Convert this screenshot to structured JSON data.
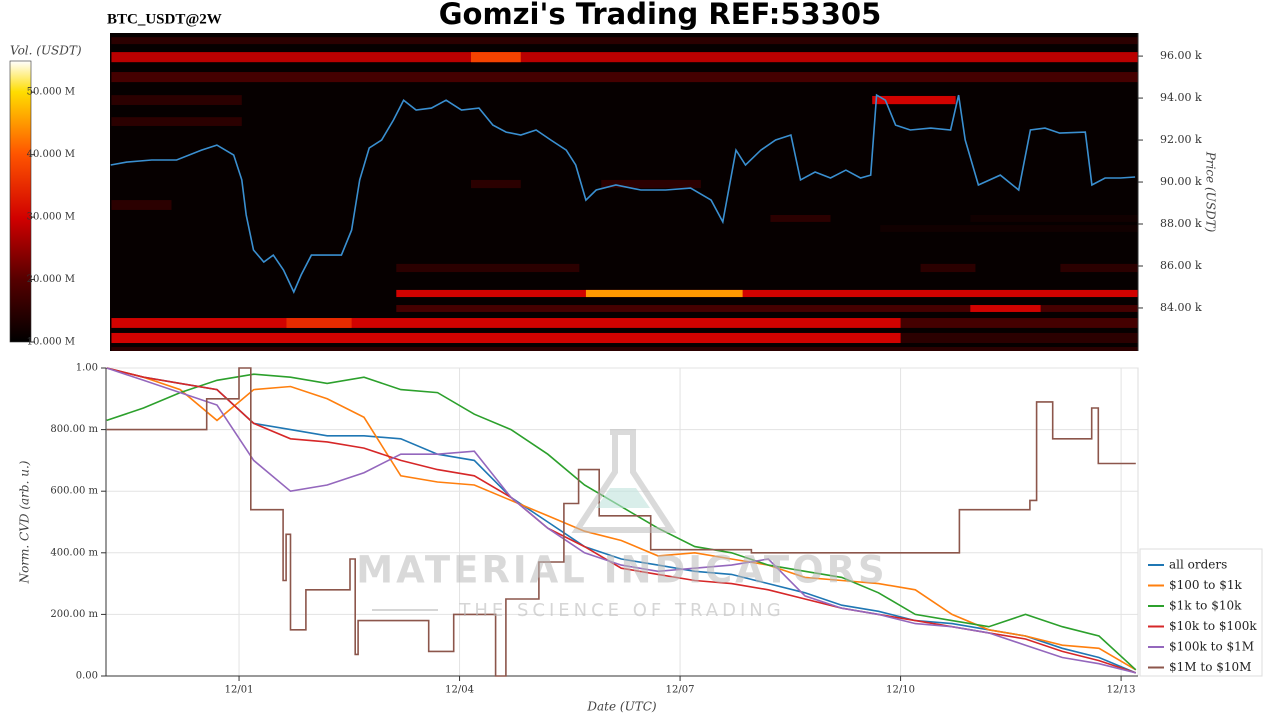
{
  "chart_data": [
    {
      "type": "heatmap",
      "title": "Gomzi's Trading REF:53305",
      "subtitle": "BTC_USDT@2W",
      "ylabel": "Price (USDT)",
      "xlim": [
        -1.81,
        12.23
      ],
      "ylim": [
        81950,
        97100
      ],
      "yticks": [
        {
          "value": 84000,
          "label": "84.00 k"
        },
        {
          "value": 86000,
          "label": "86.00 k"
        },
        {
          "value": 88000,
          "label": "88.00 k"
        },
        {
          "value": 90000,
          "label": "90.00 k"
        },
        {
          "value": 92000,
          "label": "92.00 k"
        },
        {
          "value": 94000,
          "label": "94.00 k"
        },
        {
          "value": 96000,
          "label": "96.00 k"
        }
      ],
      "colormap": "hot",
      "colorbar": {
        "label": "Vol. (USDT)",
        "lim": [
          10000000,
          55000000
        ],
        "ticks": [
          {
            "value": 10000000,
            "label": "10.000 M"
          },
          {
            "value": 20000000,
            "label": "20.000 M"
          },
          {
            "value": 30000000,
            "label": "30.000 M"
          },
          {
            "value": 40000000,
            "label": "40.000 M"
          },
          {
            "value": 50000000,
            "label": "50.000 M"
          }
        ]
      },
      "bands": [
        {
          "x": [
            -1.79,
            12.23
          ],
          "y": [
            96570,
            96900
          ],
          "value": 15000000
        },
        {
          "x": [
            -1.79,
            12.23
          ],
          "y": [
            95710,
            96190
          ],
          "value": 28000000
        },
        {
          "x": [
            3.12,
            3.8
          ],
          "y": [
            95710,
            96190
          ],
          "value": 38000000
        },
        {
          "x": [
            -1.79,
            12.23
          ],
          "y": [
            94760,
            95240
          ],
          "value": 18000000
        },
        {
          "x": [
            -1.79,
            -0.01
          ],
          "y": [
            93670,
            94140
          ],
          "value": 15000000
        },
        {
          "x": [
            -1.79,
            -0.01
          ],
          "y": [
            92670,
            93090
          ],
          "value": 15000000
        },
        {
          "x": [
            8.6,
            9.74
          ],
          "y": [
            93710,
            94100
          ],
          "value": 30000000
        },
        {
          "x": [
            3.12,
            3.8
          ],
          "y": [
            89710,
            90100
          ],
          "value": 15000000
        },
        {
          "x": [
            4.9,
            6.26
          ],
          "y": [
            89710,
            90100
          ],
          "value": 15000000
        },
        {
          "x": [
            -1.79,
            -0.97
          ],
          "y": [
            88670,
            89140
          ],
          "value": 15000000
        },
        {
          "x": [
            7.21,
            8.03
          ],
          "y": [
            88100,
            88430
          ],
          "value": 15000000
        },
        {
          "x": [
            9.94,
            12.23
          ],
          "y": [
            88100,
            88430
          ],
          "value": 12000000
        },
        {
          "x": [
            8.71,
            12.23
          ],
          "y": [
            87620,
            87950
          ],
          "value": 12000000
        },
        {
          "x": [
            2.1,
            4.6
          ],
          "y": [
            85710,
            86100
          ],
          "value": 15000000
        },
        {
          "x": [
            9.26,
            10.01
          ],
          "y": [
            85710,
            86100
          ],
          "value": 15000000
        },
        {
          "x": [
            11.17,
            12.23
          ],
          "y": [
            85710,
            86100
          ],
          "value": 15000000
        },
        {
          "x": [
            2.1,
            12.23
          ],
          "y": [
            84520,
            84860
          ],
          "value": 30000000
        },
        {
          "x": [
            4.69,
            6.83
          ],
          "y": [
            84520,
            84860
          ],
          "value": 45000000
        },
        {
          "x": [
            2.1,
            12.23
          ],
          "y": [
            83810,
            84140
          ],
          "value": 18000000
        },
        {
          "x": [
            9.94,
            10.9
          ],
          "y": [
            83810,
            84140
          ],
          "value": 30000000
        },
        {
          "x": [
            -1.79,
            8.99
          ],
          "y": [
            83050,
            83520
          ],
          "value": 30000000
        },
        {
          "x": [
            0.6,
            1.49
          ],
          "y": [
            83050,
            83520
          ],
          "value": 35000000
        },
        {
          "x": [
            8.99,
            12.23
          ],
          "y": [
            83050,
            83520
          ],
          "value": 18000000
        },
        {
          "x": [
            -1.79,
            8.99
          ],
          "y": [
            82330,
            82810
          ],
          "value": 30000000
        },
        {
          "x": [
            8.99,
            12.23
          ],
          "y": [
            82330,
            82810
          ],
          "value": 15000000
        },
        {
          "x": [
            -1.79,
            12.23
          ],
          "y": [
            81950,
            82140
          ],
          "value": 15000000
        }
      ],
      "series": [
        {
          "color": "#3a8fd0",
          "x": [
            -1.8,
            -1.58,
            -1.24,
            -0.9,
            -0.56,
            -0.35,
            -0.12,
            -0.01,
            0.05,
            0.15,
            0.29,
            0.42,
            0.56,
            0.7,
            0.8,
            0.94,
            1.15,
            1.35,
            1.49,
            1.6,
            1.73,
            1.9,
            2.06,
            2.2,
            2.37,
            2.58,
            2.78,
            2.99,
            3.23,
            3.42,
            3.6,
            3.8,
            4.01,
            4.21,
            4.42,
            4.55,
            4.69,
            4.83,
            5.1,
            5.44,
            5.78,
            6.12,
            6.4,
            6.56,
            6.74,
            6.87,
            7.08,
            7.28,
            7.49,
            7.62,
            7.82,
            8.03,
            8.24,
            8.44,
            8.58,
            8.66,
            8.78,
            8.92,
            9.12,
            9.4,
            9.67,
            9.78,
            9.87,
            10.05,
            10.35,
            10.6,
            10.76,
            10.96,
            11.16,
            11.51,
            11.6,
            11.78,
            11.99,
            12.19
          ],
          "values": [
            90810,
            90950,
            91050,
            91050,
            91520,
            91760,
            91290,
            90100,
            88430,
            86760,
            86190,
            86520,
            85810,
            84760,
            85570,
            86520,
            86520,
            86520,
            87710,
            90100,
            91620,
            92000,
            92950,
            93900,
            93430,
            93520,
            93900,
            93430,
            93520,
            92710,
            92380,
            92240,
            92480,
            92000,
            91520,
            90810,
            89140,
            89620,
            89860,
            89620,
            89620,
            89710,
            89140,
            88100,
            91520,
            90810,
            91520,
            92000,
            92240,
            90100,
            90480,
            90190,
            90570,
            90190,
            90330,
            94140,
            93900,
            92710,
            92480,
            92570,
            92480,
            94140,
            92000,
            89860,
            90330,
            89620,
            92480,
            92570,
            92330,
            92380,
            89860,
            90190,
            90190,
            90240
          ]
        }
      ]
    },
    {
      "type": "line",
      "xlabel": "Date (UTC)",
      "ylabel": "Norm. CVD (arb. u.)",
      "grid": true,
      "legend": "lower right outside",
      "xlim": [
        -1.81,
        12.23
      ],
      "ylim": [
        0,
        1
      ],
      "xticks": [
        {
          "value": 0,
          "label": "12/01"
        },
        {
          "value": 3,
          "label": "12/04"
        },
        {
          "value": 6,
          "label": "12/07"
        },
        {
          "value": 9,
          "label": "12/10"
        },
        {
          "value": 12,
          "label": "12/13"
        }
      ],
      "yticks": [
        {
          "value": 0,
          "label": "0.00"
        },
        {
          "value": 0.2,
          "label": "200.00 m"
        },
        {
          "value": 0.4,
          "label": "400.00 m"
        },
        {
          "value": 0.6,
          "label": "600.00 m"
        },
        {
          "value": 0.8,
          "label": "800.00 m"
        },
        {
          "value": 1,
          "label": "1.00"
        }
      ],
      "x": [
        -1.8,
        -1.3,
        -0.8,
        -0.3,
        0.2,
        0.7,
        1.2,
        1.7,
        2.2,
        2.7,
        3.2,
        3.7,
        4.2,
        4.7,
        5.2,
        5.7,
        6.2,
        6.7,
        7.2,
        7.7,
        8.2,
        8.7,
        9.2,
        9.7,
        10.2,
        10.7,
        11.2,
        11.7,
        12.2
      ],
      "series": [
        {
          "name": "all orders",
          "color": "#1f77b4",
          "values": [
            1.0,
            0.97,
            0.95,
            0.93,
            0.82,
            0.8,
            0.78,
            0.78,
            0.77,
            0.72,
            0.7,
            0.58,
            0.5,
            0.42,
            0.38,
            0.36,
            0.34,
            0.33,
            0.3,
            0.27,
            0.23,
            0.21,
            0.18,
            0.17,
            0.15,
            0.13,
            0.09,
            0.06,
            0.01
          ]
        },
        {
          "name": "$100 to $1k",
          "color": "#ff7f0e",
          "values": [
            1.0,
            0.97,
            0.93,
            0.83,
            0.93,
            0.94,
            0.9,
            0.84,
            0.65,
            0.63,
            0.62,
            0.57,
            0.52,
            0.47,
            0.44,
            0.39,
            0.4,
            0.38,
            0.36,
            0.32,
            0.31,
            0.3,
            0.28,
            0.2,
            0.15,
            0.13,
            0.1,
            0.09,
            0.02
          ]
        },
        {
          "name": "$1k to $10k",
          "color": "#2ca02c",
          "values": [
            0.83,
            0.87,
            0.92,
            0.96,
            0.98,
            0.97,
            0.95,
            0.97,
            0.93,
            0.92,
            0.85,
            0.8,
            0.72,
            0.62,
            0.55,
            0.48,
            0.42,
            0.4,
            0.36,
            0.34,
            0.32,
            0.27,
            0.2,
            0.18,
            0.16,
            0.2,
            0.16,
            0.13,
            0.02
          ]
        },
        {
          "name": "$10k to $100k",
          "color": "#d62728",
          "values": [
            1.0,
            0.97,
            0.95,
            0.93,
            0.82,
            0.77,
            0.76,
            0.74,
            0.7,
            0.67,
            0.65,
            0.58,
            0.48,
            0.42,
            0.35,
            0.33,
            0.31,
            0.3,
            0.28,
            0.25,
            0.22,
            0.2,
            0.18,
            0.16,
            0.14,
            0.12,
            0.08,
            0.05,
            0.01
          ]
        },
        {
          "name": "$100k to $1M",
          "color": "#9467bd",
          "values": [
            1.0,
            0.96,
            0.92,
            0.88,
            0.7,
            0.6,
            0.62,
            0.66,
            0.72,
            0.72,
            0.73,
            0.58,
            0.48,
            0.4,
            0.36,
            0.34,
            0.35,
            0.36,
            0.38,
            0.26,
            0.22,
            0.2,
            0.17,
            0.16,
            0.14,
            0.1,
            0.06,
            0.04,
            0.01
          ]
        },
        {
          "name": "$1M to $10M",
          "color": "#8c564b",
          "x": [
            -1.8,
            -0.44,
            -0.44,
            0,
            0,
            0.16,
            0.16,
            0.6,
            0.6,
            0.64,
            0.64,
            0.7,
            0.7,
            0.91,
            0.91,
            1.51,
            1.51,
            1.58,
            1.58,
            1.62,
            1.62,
            2.58,
            2.58,
            2.92,
            2.92,
            3.49,
            3.49,
            3.63,
            3.63,
            4.08,
            4.08,
            4.42,
            4.42,
            4.62,
            4.62,
            4.9,
            4.9,
            5.6,
            5.6,
            6.97,
            6.97,
            9.8,
            9.8,
            10.76,
            10.76,
            10.85,
            10.85,
            11.07,
            11.07,
            11.6,
            11.6,
            11.69,
            11.69,
            12.2
          ],
          "values": [
            0.8,
            0.8,
            0.9,
            0.9,
            1.0,
            1.0,
            0.54,
            0.54,
            0.31,
            0.31,
            0.46,
            0.46,
            0.15,
            0.15,
            0.28,
            0.28,
            0.38,
            0.38,
            0.07,
            0.07,
            0.18,
            0.18,
            0.08,
            0.08,
            0.2,
            0.2,
            0,
            0,
            0.25,
            0.25,
            0.37,
            0.37,
            0.56,
            0.56,
            0.67,
            0.67,
            0.52,
            0.52,
            0.41,
            0.41,
            0.4,
            0.4,
            0.54,
            0.54,
            0.57,
            0.57,
            0.89,
            0.89,
            0.77,
            0.77,
            0.87,
            0.87,
            0.69,
            0.69
          ]
        }
      ]
    }
  ],
  "watermark": {
    "title": "MATERIAL INDICATORS",
    "subtitle": "THE SCIENCE OF TRADING"
  }
}
